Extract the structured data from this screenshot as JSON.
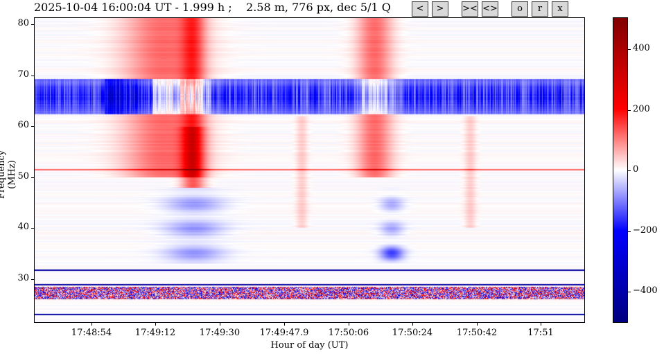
{
  "header": {
    "title": "2025-10-04 16:00:04 UT - 1.999 h ;    2.58 m, 776 px, dec 5/1 Q"
  },
  "buttons": [
    {
      "label": "<"
    },
    {
      "label": ">"
    },
    {
      "label": "><"
    },
    {
      "label": "<>"
    },
    {
      "label": "o"
    },
    {
      "label": "r"
    },
    {
      "label": "x"
    }
  ],
  "plot": {
    "xlabel": "Hour of day (UT)",
    "ylabel": "Frequency (MHz)",
    "xticks": [
      "17:48:54",
      "17:49:12",
      "17:49:30",
      "17:49:47.9",
      "17:50:06",
      "17:50:24",
      "17:50:42",
      "17:51"
    ],
    "yticks": [
      "30",
      "40",
      "50",
      "60",
      "70",
      "80"
    ],
    "ylim": [
      21.4,
      81.4
    ]
  },
  "colorbar": {
    "ticks": [
      "400",
      "200",
      "0",
      "−200",
      "−400"
    ],
    "range": [
      -500,
      500
    ],
    "colors": [
      "#000080",
      "#0000ff",
      "#ffffff",
      "#ff0000",
      "#800000"
    ]
  }
}
